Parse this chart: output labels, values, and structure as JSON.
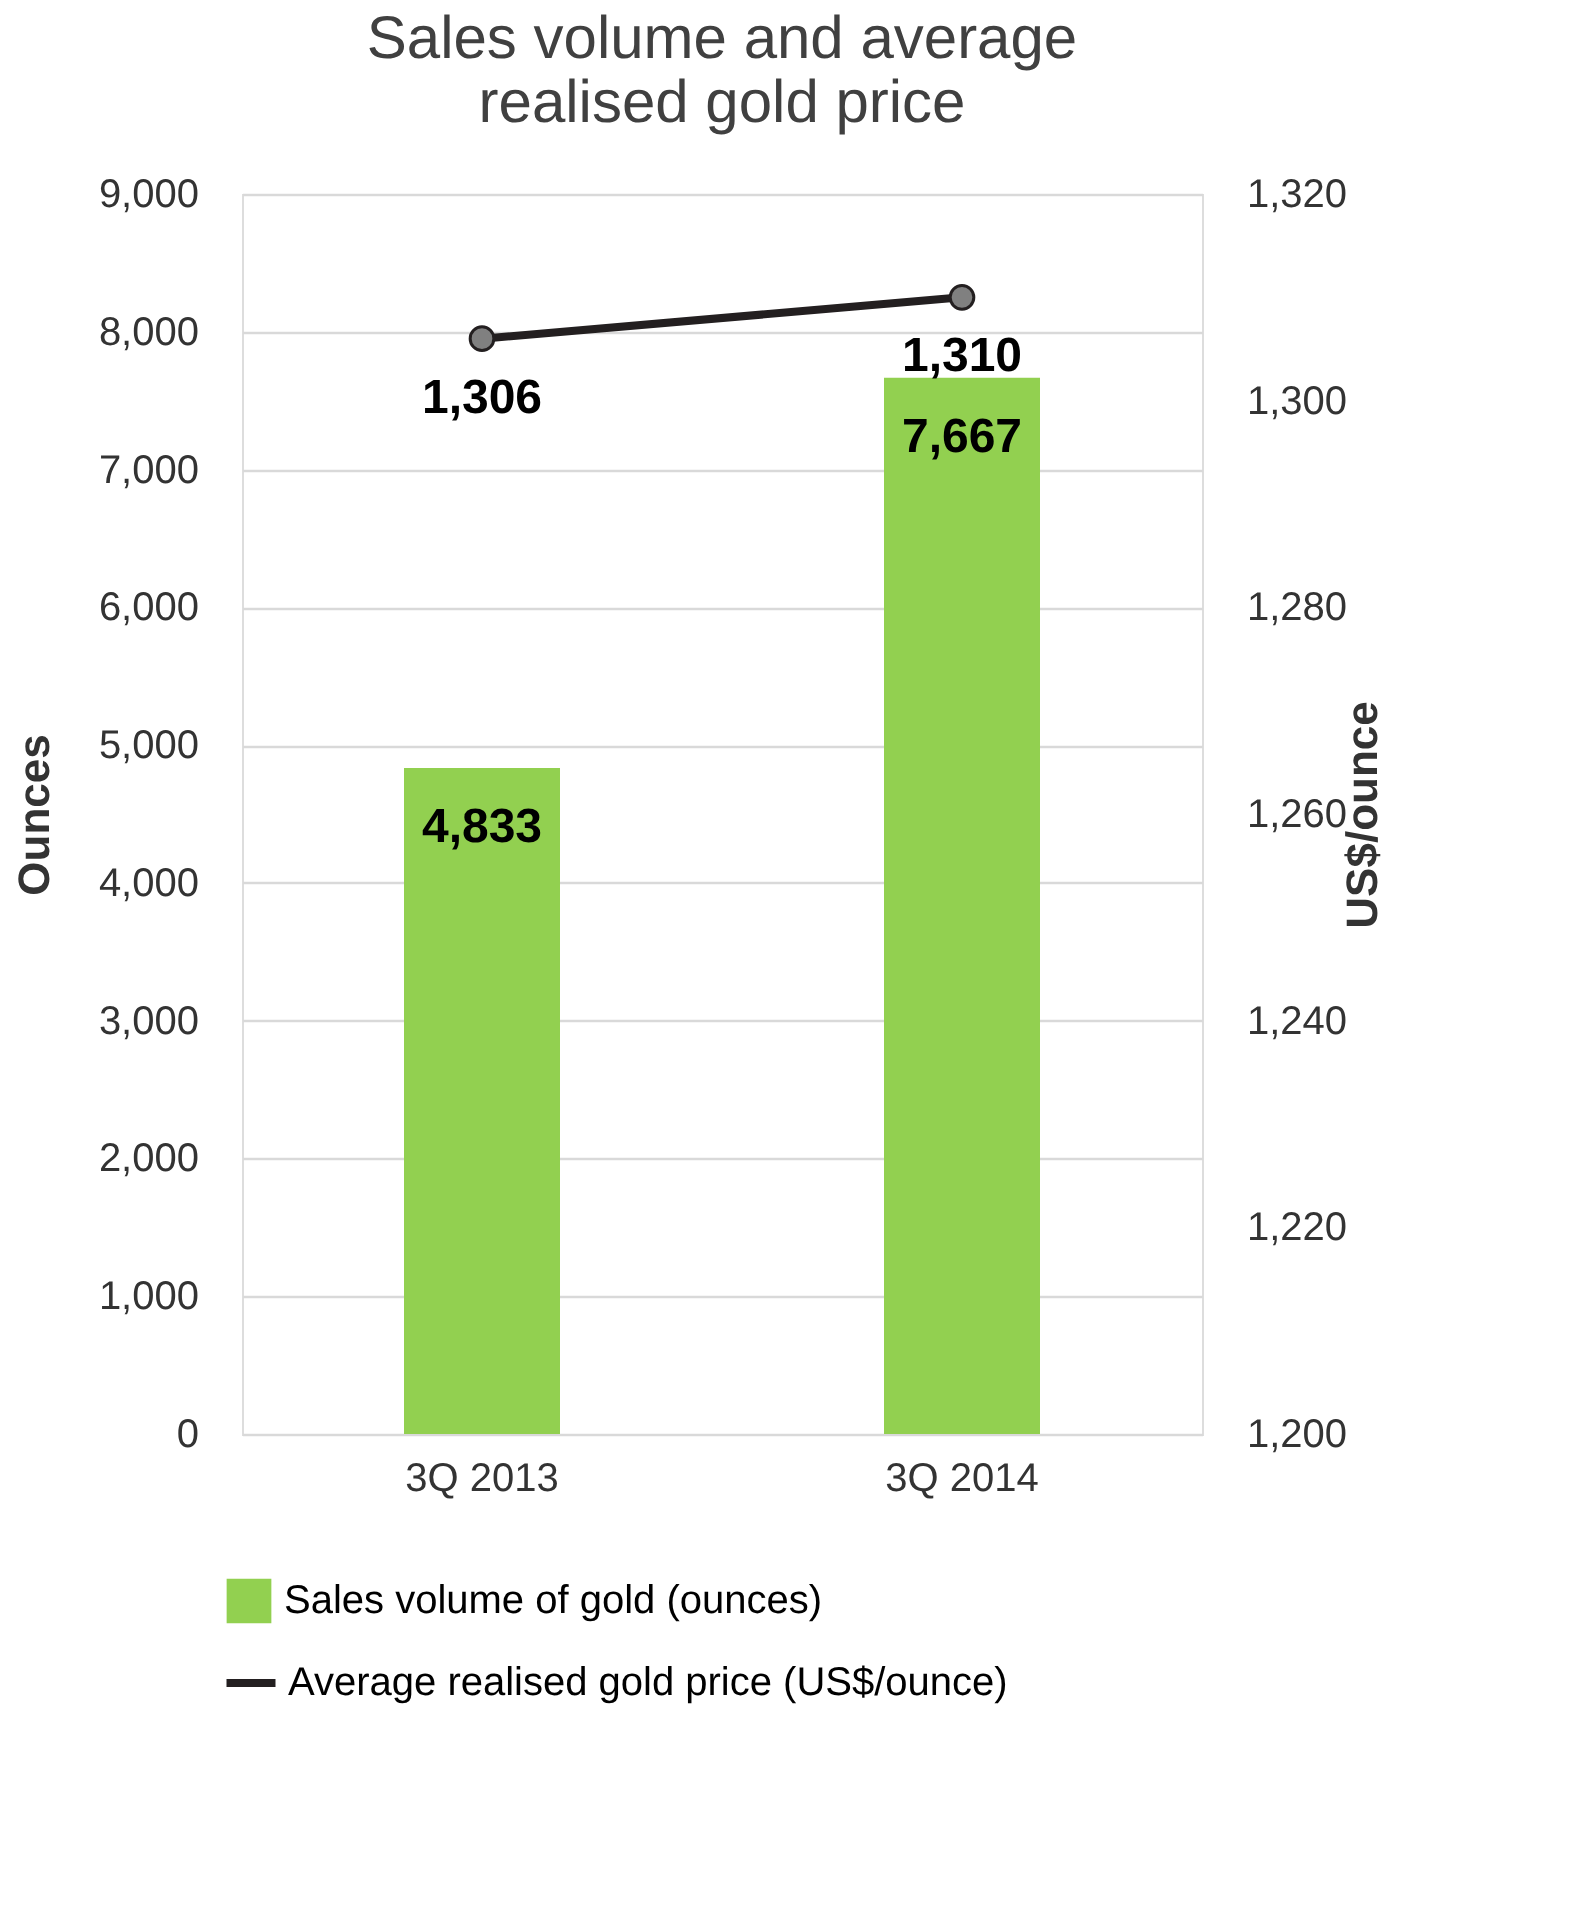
{
  "chart_data": {
    "type": "bar",
    "title": "Sales volume and average realised gold price",
    "categories": [
      "3Q 2013",
      "3Q 2014"
    ],
    "series": [
      {
        "name": "Sales volume of gold (ounces)",
        "color": "#92d050",
        "values": [
          4833,
          7667
        ],
        "value_labels": [
          "4,833",
          "7,667"
        ]
      },
      {
        "name": "Average realised gold price (US$/ounce)",
        "type": "line",
        "axis": "y2",
        "color": "#231f20",
        "values": [
          1306,
          1310
        ],
        "value_labels": [
          "1,306",
          "1,310"
        ],
        "marker": "circle"
      }
    ],
    "ylabel": "Ounces",
    "y2label": "US$/ounce",
    "ylim": [
      0,
      9000
    ],
    "yticks": [
      0,
      {
        "value": 1000,
        "label": "1,000"
      },
      {
        "value": 2000,
        "label": "2,000"
      },
      {
        "value": 3000,
        "label": "3,000"
      },
      {
        "value": 4000,
        "label": "4,000"
      },
      {
        "value": 5000,
        "label": "5,000"
      },
      {
        "value": 6000,
        "label": "6,000"
      },
      {
        "value": 7000,
        "label": "7,000"
      },
      {
        "value": 8000,
        "label": "8,000"
      },
      {
        "value": 9000,
        "label": "9,000"
      }
    ],
    "y2lim": [
      1200,
      1320
    ],
    "y2ticks": [
      {
        "value": 1200,
        "label": "1,200"
      },
      {
        "value": 1220,
        "label": "1,220"
      },
      {
        "value": 1240,
        "label": "1,240"
      },
      {
        "value": 1260,
        "label": "1,260"
      },
      {
        "value": 1280,
        "label": "1,280"
      },
      {
        "value": 1300,
        "label": "1,300"
      },
      {
        "value": 1320,
        "label": "1,320"
      }
    ],
    "grid": "y",
    "legend": "bottom"
  }
}
